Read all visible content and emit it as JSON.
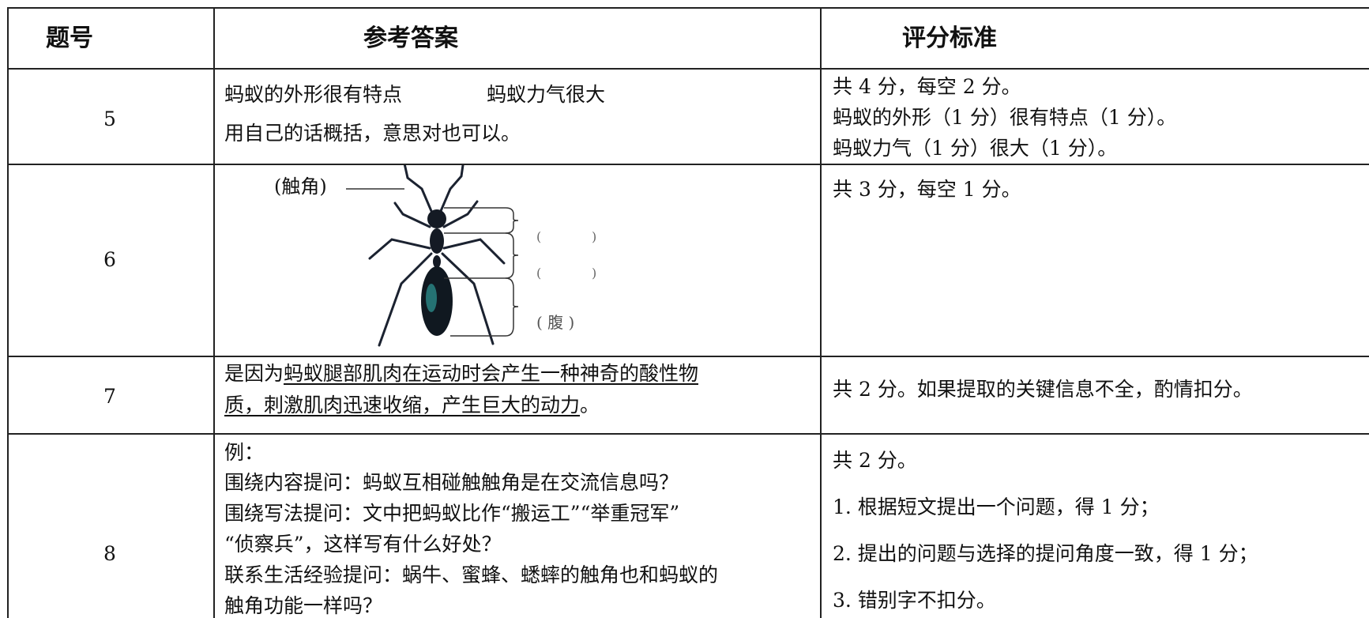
{
  "table": {
    "header": [
      "题号",
      "参考答案",
      "评分标准"
    ],
    "rows": [
      {
        "number": "5",
        "answer": [
          "蚂蚁的外形很有特点",
          "蚂蚁力气很大",
          "用自己的话概括，意思对也可以。"
        ],
        "criteria": [
          "共 4 分，每空 2 分。",
          "蚂蚁的外形（1 分）很有特点（1 分）。",
          "蚂蚁力气（1 分）很大（1 分）。"
        ]
      },
      {
        "number": "6",
        "diagram_labels": [
          "(触角)",
          "(",
          ")",
          "(",
          ")",
          "( 腹 )"
        ],
        "criteria": [
          "共 3 分，每空 1 分。"
        ]
      },
      {
        "number": "7",
        "answer": [
          "是因为",
          "蚂蚁腿部肌肉在运动时会产生一种神奇的酸性物",
          "质，刺激肌肉迅速收缩，产生巨大的动力",
          "。"
        ],
        "criteria": [
          "共 2 分。如果提取的关键信息不全，酌情扣分。"
        ]
      },
      {
        "number": "8",
        "answer": [
          "例：",
          "围绕内容提问：蚂蚁互相碰触触角是在交流信息吗？",
          "围绕写法提问：文中把蚂蚁比作“搬运工”“举重冠军”",
          "“侦察兵”，这样写有什么好处？",
          "联系生活经验提问：蜗牛、蜜蜂、蟋蟀的触角也和蚂蚁的",
          "触角功能一样吗？"
        ],
        "criteria": [
          "共 2 分。",
          "1. 根据短文提出一个问题，得 1 分；",
          "2. 提出的问题与选择的提问角度一致，得 1 分；",
          "3. 错别字不扣分。"
        ]
      }
    ]
  }
}
